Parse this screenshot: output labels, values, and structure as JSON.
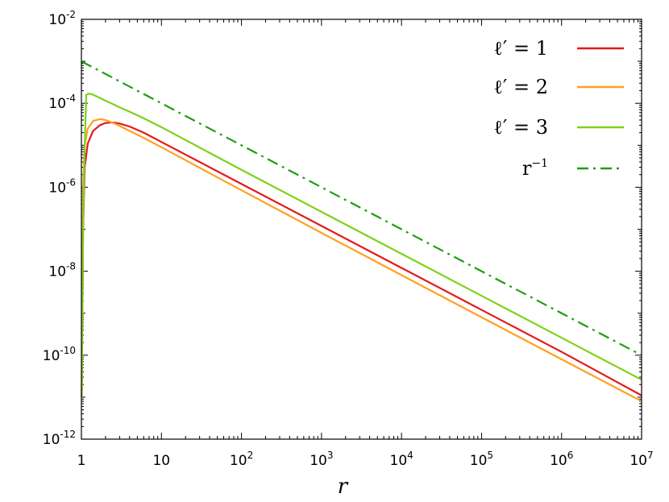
{
  "chart_data": {
    "type": "line",
    "title": "",
    "xlabel": "r",
    "ylabel": "",
    "xscale": "log",
    "yscale": "log",
    "xlim": [
      1,
      10000000
    ],
    "ylim": [
      1e-12,
      0.01
    ],
    "grid": false,
    "legend_position": "top-right",
    "x_ticks": [
      {
        "base": "1",
        "exp": ""
      },
      {
        "base": "10",
        "exp": ""
      },
      {
        "base": "10",
        "exp": "2"
      },
      {
        "base": "10",
        "exp": "3"
      },
      {
        "base": "10",
        "exp": "4"
      },
      {
        "base": "10",
        "exp": "5"
      },
      {
        "base": "10",
        "exp": "6"
      },
      {
        "base": "10",
        "exp": "7"
      }
    ],
    "y_ticks": [
      {
        "base": "10",
        "exp": "-2"
      },
      {
        "base": "10",
        "exp": "-4"
      },
      {
        "base": "10",
        "exp": "-6"
      },
      {
        "base": "10",
        "exp": "-8"
      },
      {
        "base": "10",
        "exp": "-10"
      },
      {
        "base": "10",
        "exp": "-12"
      }
    ],
    "series": [
      {
        "name": "ℓ′ = 1",
        "legend_base": "ℓ′ = 1",
        "legend_sup": "",
        "color": "#e31a1c",
        "style": "solid",
        "x": [
          1.01,
          1.05,
          1.1,
          1.2,
          1.4,
          1.7,
          2.0,
          2.5,
          3.0,
          4.0,
          6.0,
          10,
          100,
          1000,
          10000,
          100000,
          1000000,
          10000000
        ],
        "y": [
          1e-11,
          1e-07,
          3e-06,
          1.1e-05,
          2.2e-05,
          3e-05,
          3.4e-05,
          3.5e-05,
          3.3e-05,
          2.8e-05,
          2e-05,
          1.2e-05,
          1.2e-06,
          1.2e-07,
          1.2e-08,
          1.2e-09,
          1.2e-10,
          1.1e-11
        ]
      },
      {
        "name": "ℓ′ = 2",
        "legend_base": "ℓ′ = 2",
        "legend_sup": "",
        "color": "#ffa020",
        "style": "solid",
        "x": [
          1.01,
          1.05,
          1.1,
          1.2,
          1.4,
          1.7,
          2.0,
          2.5,
          3.0,
          4.0,
          6.0,
          10,
          100,
          1000,
          10000,
          100000,
          1000000,
          10000000
        ],
        "y": [
          1e-11,
          1e-06,
          1e-05,
          2.5e-05,
          3.8e-05,
          4.2e-05,
          4e-05,
          3.4e-05,
          2.9e-05,
          2.2e-05,
          1.5e-05,
          9e-06,
          8.5e-07,
          8.2e-08,
          8.1e-09,
          8e-10,
          8e-11,
          8e-12
        ]
      },
      {
        "name": "ℓ′ = 3",
        "legend_base": "ℓ′ = 3",
        "legend_sup": "",
        "color": "#7fd11b",
        "style": "solid",
        "x": [
          1.01,
          1.05,
          1.1,
          1.15,
          1.25,
          1.4,
          1.7,
          2.0,
          2.5,
          3.0,
          4.0,
          6.0,
          10,
          100,
          1000,
          10000,
          100000,
          1000000,
          10000000
        ],
        "y": [
          1e-11,
          1e-07,
          1e-05,
          0.00016,
          0.00017,
          0.00016,
          0.000135,
          0.000115,
          9.5e-05,
          8e-05,
          6.3e-05,
          4.4e-05,
          2.7e-05,
          2.6e-06,
          2.6e-07,
          2.6e-08,
          2.6e-09,
          2.6e-10,
          2.6e-11
        ]
      },
      {
        "name": "r⁻¹",
        "legend_base": "r",
        "legend_sup": "−1",
        "color": "#1f9e0f",
        "style": "dashdot",
        "x": [
          1,
          10000000
        ],
        "y": [
          0.001,
          1e-10
        ]
      }
    ]
  }
}
